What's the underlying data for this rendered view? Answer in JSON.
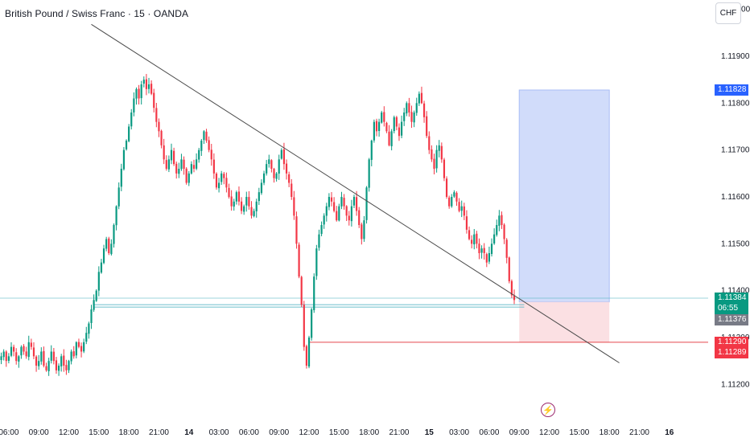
{
  "header": {
    "title": "British Pound / Swiss Franc · 15 · OANDA",
    "currency_button": "CHF"
  },
  "colors": {
    "up": "#089981",
    "down": "#f23645",
    "target_zone": "#c6d3f9",
    "stop_zone": "#fbdde0",
    "trendline": "#4a4a4a",
    "level_line": "#5bb7c5",
    "stop_line": "#e5484d",
    "badge_blue": "#2962ff",
    "badge_green": "#089981",
    "badge_gray": "#787b86",
    "badge_red": "#f23645"
  },
  "badges": {
    "target": "1.11828",
    "last_price": "1.11384",
    "countdown": "06:55",
    "entry": "1.11376",
    "stop": "1.11290",
    "stop2": "1.11289"
  },
  "events": {
    "flash_icon": "lightning-icon"
  },
  "chart_data": {
    "type": "candlestick",
    "symbol": "GBPCHF",
    "interval": "15",
    "ylim": [
      1.1112,
      1.1202
    ],
    "y_ticks": [
      "1.12000",
      "1.11900",
      "1.11800",
      "1.11700",
      "1.11600",
      "1.11500",
      "1.11400",
      "1.11300",
      "1.11200"
    ],
    "x_ticks": [
      {
        "label": "06:00",
        "bar": 3
      },
      {
        "label": "09:00",
        "bar": 15
      },
      {
        "label": "12:00",
        "bar": 27
      },
      {
        "label": "15:00",
        "bar": 39
      },
      {
        "label": "18:00",
        "bar": 51
      },
      {
        "label": "21:00",
        "bar": 63
      },
      {
        "label": "14",
        "bar": 75,
        "bold": true
      },
      {
        "label": "03:00",
        "bar": 87
      },
      {
        "label": "06:00",
        "bar": 99
      },
      {
        "label": "09:00",
        "bar": 111
      },
      {
        "label": "12:00",
        "bar": 123
      },
      {
        "label": "15:00",
        "bar": 135
      },
      {
        "label": "18:00",
        "bar": 147
      },
      {
        "label": "21:00",
        "bar": 159
      },
      {
        "label": "15",
        "bar": 171,
        "bold": true
      },
      {
        "label": "03:00",
        "bar": 183
      },
      {
        "label": "06:00",
        "bar": 195
      },
      {
        "label": "09:00",
        "bar": 207
      },
      {
        "label": "12:00",
        "bar": 219
      },
      {
        "label": "15:00",
        "bar": 231
      },
      {
        "label": "18:00",
        "bar": 243
      },
      {
        "label": "21:00",
        "bar": 255
      },
      {
        "label": "16",
        "bar": 267,
        "bold": true
      }
    ],
    "bar_count_visible": 283,
    "candles_close": [
      1.1126,
      1.1127,
      1.1125,
      1.1126,
      1.1128,
      1.1127,
      1.1125,
      1.1126,
      1.1128,
      1.1127,
      1.1126,
      1.1129,
      1.1128,
      1.1126,
      1.1124,
      1.1125,
      1.1127,
      1.1124,
      1.1123,
      1.1125,
      1.1127,
      1.1125,
      1.1123,
      1.1124,
      1.1126,
      1.1124,
      1.1123,
      1.1125,
      1.1127,
      1.1126,
      1.1129,
      1.1128,
      1.1127,
      1.1129,
      1.1131,
      1.1133,
      1.1136,
      1.1138,
      1.114,
      1.1144,
      1.1146,
      1.1149,
      1.1151,
      1.1148,
      1.115,
      1.1154,
      1.1158,
      1.1162,
      1.1166,
      1.117,
      1.1172,
      1.1175,
      1.1178,
      1.1181,
      1.1183,
      1.1181,
      1.1184,
      1.1185,
      1.1183,
      1.1184,
      1.1182,
      1.1179,
      1.1176,
      1.1174,
      1.1171,
      1.1168,
      1.1166,
      1.1168,
      1.117,
      1.1167,
      1.1165,
      1.1166,
      1.1168,
      1.1166,
      1.1163,
      1.1165,
      1.1167,
      1.1166,
      1.1168,
      1.117,
      1.1172,
      1.1174,
      1.1172,
      1.117,
      1.1168,
      1.1165,
      1.1162,
      1.1163,
      1.1165,
      1.1164,
      1.1162,
      1.116,
      1.1158,
      1.1159,
      1.1161,
      1.1159,
      1.1157,
      1.1158,
      1.116,
      1.1158,
      1.1156,
      1.1157,
      1.1159,
      1.1161,
      1.1163,
      1.1165,
      1.1167,
      1.1168,
      1.1166,
      1.1164,
      1.1165,
      1.1168,
      1.117,
      1.1167,
      1.1165,
      1.1163,
      1.116,
      1.1156,
      1.115,
      1.1143,
      1.1137,
      1.1128,
      1.1124,
      1.113,
      1.1136,
      1.1143,
      1.1149,
      1.1152,
      1.1154,
      1.1156,
      1.1158,
      1.116,
      1.1159,
      1.1157,
      1.1155,
      1.1158,
      1.116,
      1.1158,
      1.1156,
      1.1155,
      1.1158,
      1.116,
      1.1157,
      1.1154,
      1.1151,
      1.1155,
      1.1162,
      1.1168,
      1.1172,
      1.1176,
      1.1174,
      1.1176,
      1.1178,
      1.1176,
      1.1174,
      1.1171,
      1.1174,
      1.1177,
      1.1175,
      1.1173,
      1.1176,
      1.1178,
      1.118,
      1.1178,
      1.1176,
      1.1178,
      1.118,
      1.1182,
      1.118,
      1.1177,
      1.1173,
      1.117,
      1.1168,
      1.1166,
      1.117,
      1.1171,
      1.1168,
      1.1164,
      1.116,
      1.1158,
      1.116,
      1.1161,
      1.1159,
      1.1157,
      1.1158,
      1.1156,
      1.1153,
      1.1151,
      1.115,
      1.1152,
      1.115,
      1.1148,
      1.1149,
      1.1148,
      1.1146,
      1.1148,
      1.115,
      1.1152,
      1.1154,
      1.1156,
      1.1154,
      1.1151,
      1.1147,
      1.1142,
      1.1139,
      1.1138
    ],
    "target_zone": {
      "from_bar": 207,
      "to_bar": 243,
      "top": 1.11828,
      "bottom": 1.11376
    },
    "stop_zone": {
      "from_bar": 207,
      "to_bar": 243,
      "top": 1.11376,
      "bottom": 1.11289
    },
    "trendline": {
      "from": {
        "bar": 36,
        "price": 1.11968
      },
      "to": {
        "bar": 247,
        "price": 1.11246
      }
    },
    "horizontal_levels": [
      1.11384,
      1.1137,
      1.11365
    ],
    "stop_line": {
      "from_bar": 123,
      "price": 1.1129
    }
  }
}
